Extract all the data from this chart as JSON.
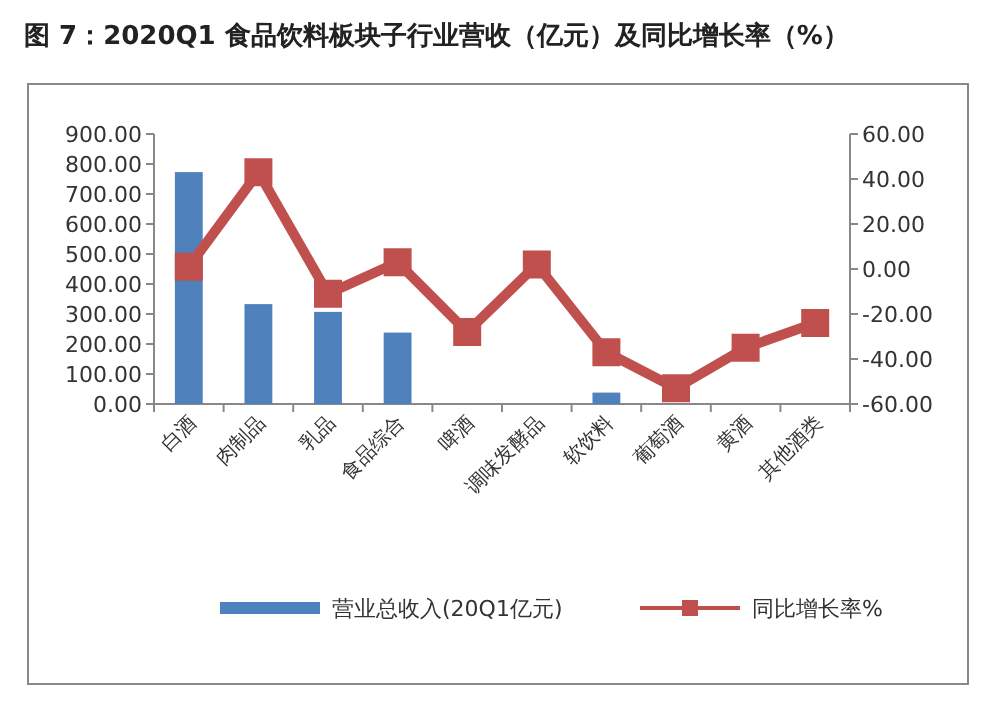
{
  "chart_data": {
    "type": "bar",
    "title": "图 7：2020Q1 食品饮料板块子行业营收（亿元）及同比增长率（%）",
    "categories": [
      "白酒",
      "肉制品",
      "乳品",
      "食品综合",
      "啤酒",
      "调味发酵品",
      "软饮料",
      "葡萄酒",
      "黄酒",
      "其他酒类"
    ],
    "series": [
      {
        "name": "营业总收入(20Q1亿元)",
        "color": "#4f81bd",
        "values": [
          773,
          333,
          307,
          238,
          null,
          null,
          38,
          null,
          null,
          null
        ]
      },
      {
        "name": "同比增长率%",
        "type": "line",
        "axis": "y2",
        "color": "#c0504d",
        "marker": "square",
        "values": [
          1,
          43,
          -11,
          3,
          -28,
          2,
          -37,
          -53,
          -35,
          -24
        ]
      }
    ],
    "ylim": [
      0,
      900
    ],
    "yticks": [
      {
        "value": 0,
        "label": "0.00"
      },
      {
        "value": 100,
        "label": "100.00"
      },
      {
        "value": 200,
        "label": "200.00"
      },
      {
        "value": 300,
        "label": "300.00"
      },
      {
        "value": 400,
        "label": "400.00"
      },
      {
        "value": 500,
        "label": "500.00"
      },
      {
        "value": 600,
        "label": "600.00"
      },
      {
        "value": 700,
        "label": "700.00"
      },
      {
        "value": 800,
        "label": "800.00"
      },
      {
        "value": 900,
        "label": "900.00"
      }
    ],
    "y2lim": [
      -60,
      60
    ],
    "y2ticks": [
      {
        "value": -60,
        "label": "-60.00"
      },
      {
        "value": -40,
        "label": "-40.00"
      },
      {
        "value": -20,
        "label": "-20.00"
      },
      {
        "value": 0,
        "label": "0.00"
      },
      {
        "value": 20,
        "label": "20.00"
      },
      {
        "value": 40,
        "label": "40.00"
      },
      {
        "value": 60,
        "label": "60.00"
      }
    ],
    "legend": "bottom"
  }
}
